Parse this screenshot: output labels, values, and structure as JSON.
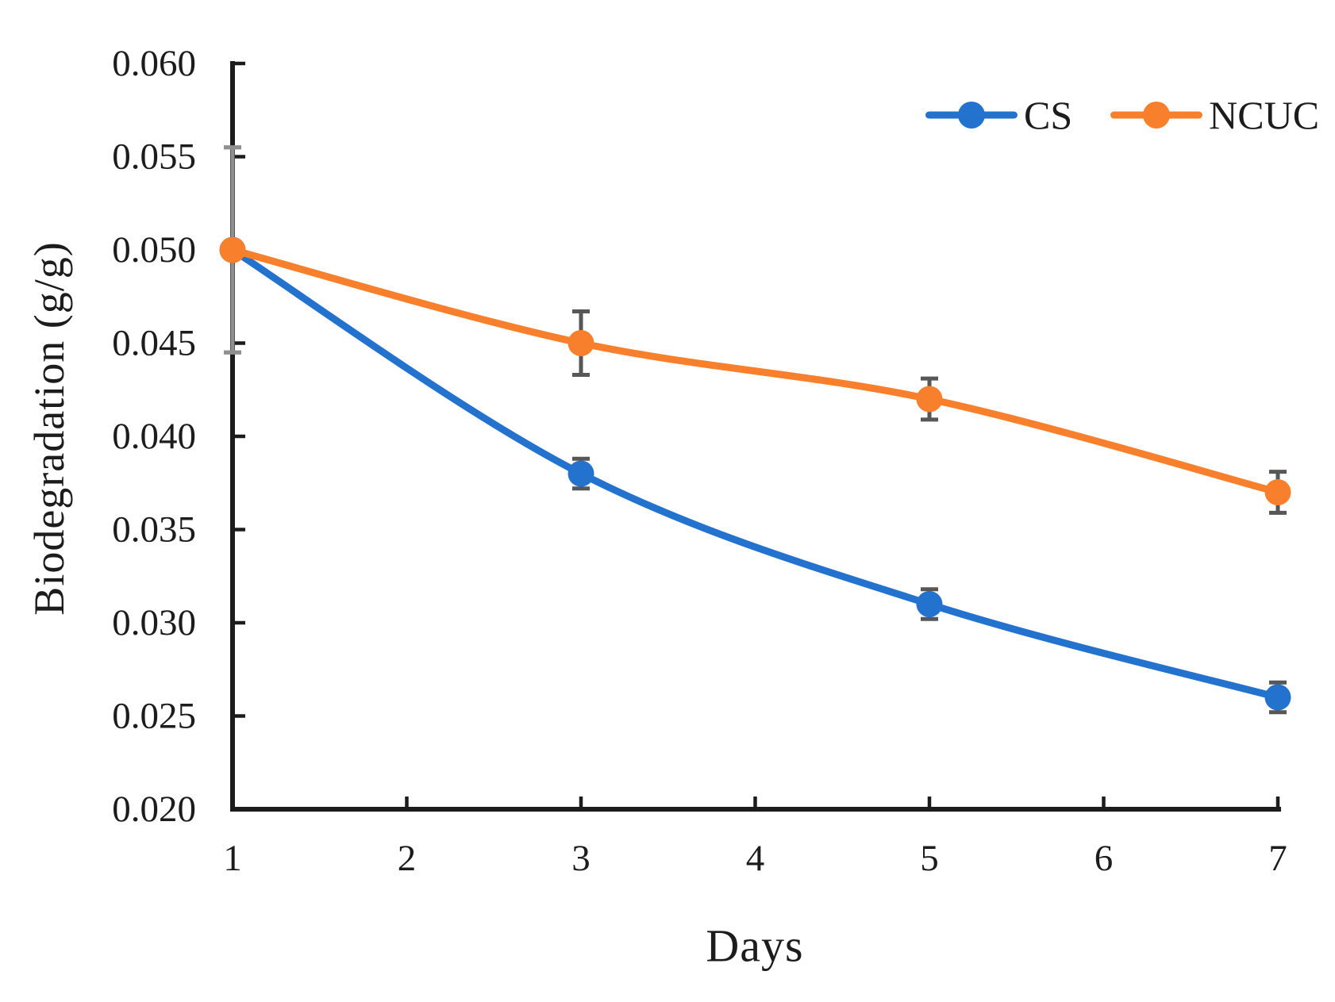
{
  "figure": {
    "background": "#ffffff",
    "text_color": "#1c1c1c"
  },
  "chart_data": {
    "type": "line",
    "title": "",
    "xlabel": "Days",
    "ylabel": "Biodegradation (g/g)",
    "x": [
      1,
      3,
      5,
      7
    ],
    "xlim": [
      1,
      7
    ],
    "ylim": [
      0.02,
      0.06
    ],
    "x_tick_labels": [
      "1",
      "2",
      "3",
      "4",
      "5",
      "6",
      "7"
    ],
    "y_tick_labels": [
      "0.060",
      "0.055",
      "0.050",
      "0.045",
      "0.040",
      "0.035",
      "0.030",
      "0.025",
      "0.020"
    ],
    "grid": false,
    "legend_position": "top-right",
    "series": [
      {
        "name": "CS",
        "color": "#2272CE",
        "values": [
          0.05,
          0.038,
          0.031,
          0.026
        ],
        "errors": [
          0.0055,
          0.0008,
          0.0008,
          0.0008
        ]
      },
      {
        "name": "NCUC",
        "color": "#F8802C",
        "values": [
          0.05,
          0.045,
          0.042,
          0.037
        ],
        "errors": [
          0.0055,
          0.0017,
          0.0011,
          0.0011
        ]
      }
    ],
    "error_bar_color": "#575757",
    "day1_error_color": "#8f8f8f",
    "axis_color": "#1c1c1c"
  }
}
